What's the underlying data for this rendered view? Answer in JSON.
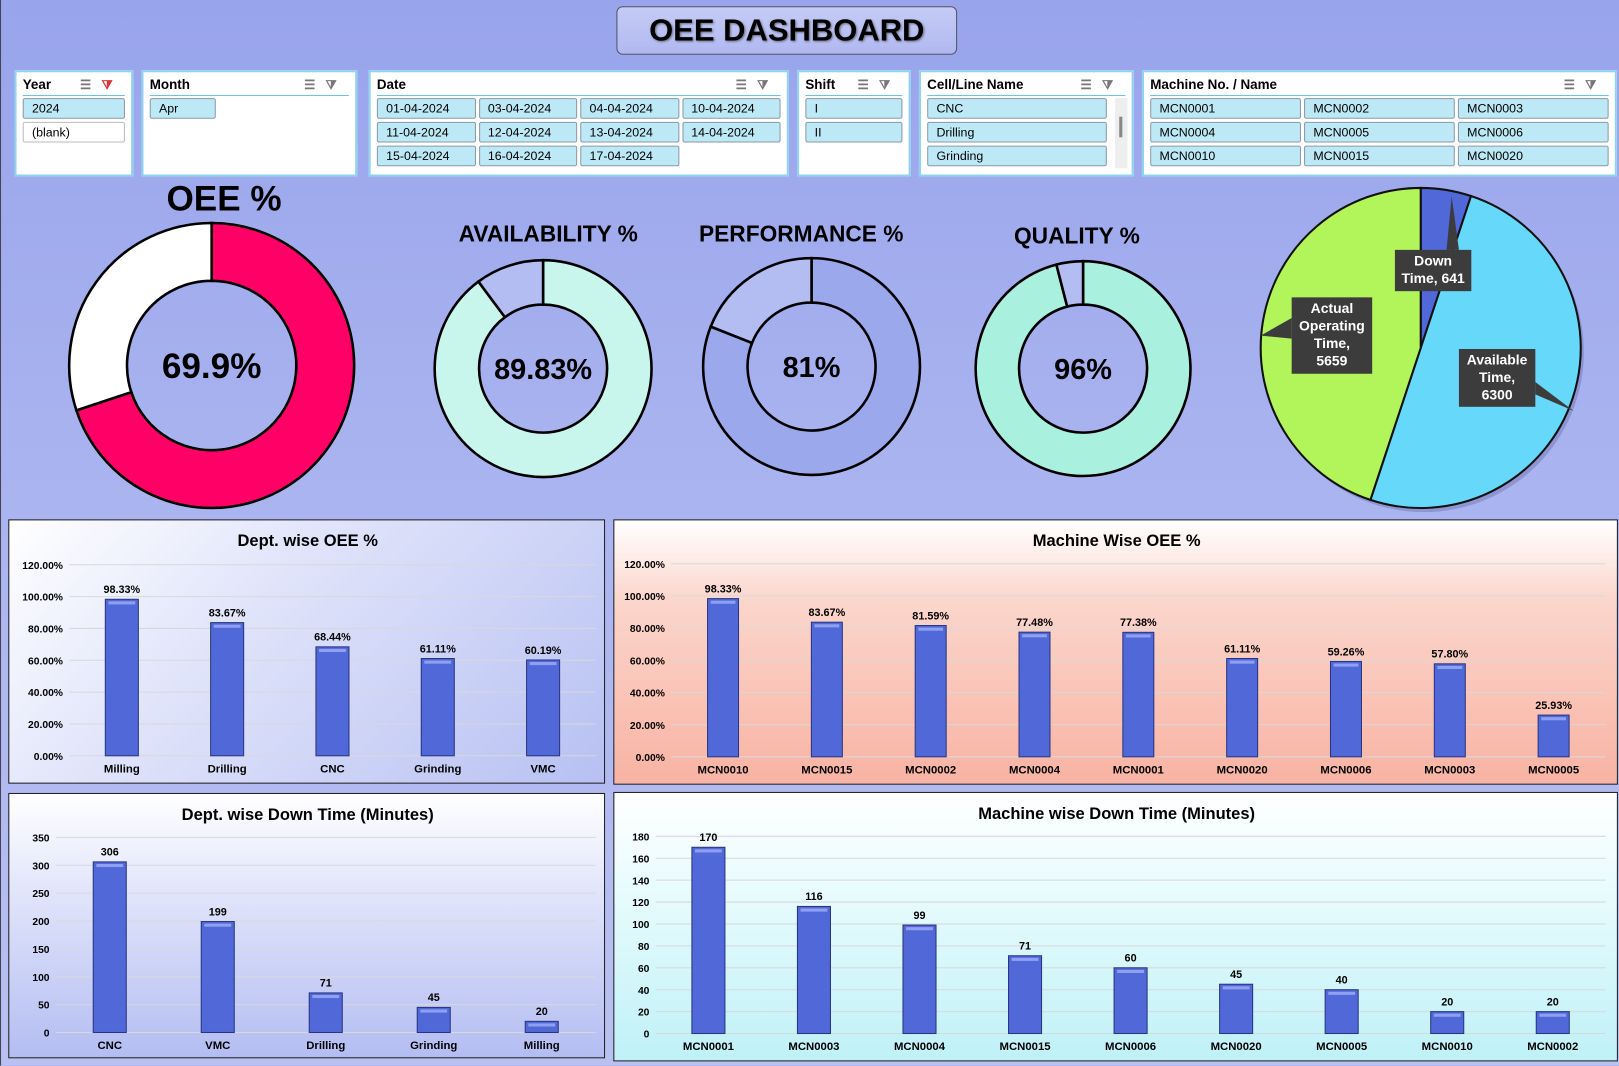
{
  "title": "OEE DASHBOARD",
  "slicers": [
    {
      "name": "Year",
      "filter_active": true,
      "columns": 1,
      "items": [
        {
          "label": "2024",
          "selected": true
        },
        {
          "label": "(blank)",
          "selected": false
        }
      ]
    },
    {
      "name": "Month",
      "filter_active": false,
      "columns": 3,
      "items": [
        {
          "label": "Apr",
          "selected": true
        }
      ]
    },
    {
      "name": "Date",
      "filter_active": false,
      "columns": 4,
      "items": [
        {
          "label": "01-04-2024",
          "selected": true
        },
        {
          "label": "03-04-2024",
          "selected": true
        },
        {
          "label": "04-04-2024",
          "selected": true
        },
        {
          "label": "10-04-2024",
          "selected": true
        },
        {
          "label": "11-04-2024",
          "selected": true
        },
        {
          "label": "12-04-2024",
          "selected": true
        },
        {
          "label": "13-04-2024",
          "selected": true
        },
        {
          "label": "14-04-2024",
          "selected": true
        },
        {
          "label": "15-04-2024",
          "selected": true
        },
        {
          "label": "16-04-2024",
          "selected": true
        },
        {
          "label": "17-04-2024",
          "selected": true
        }
      ]
    },
    {
      "name": "Shift",
      "filter_active": false,
      "columns": 1,
      "items": [
        {
          "label": "I",
          "selected": true
        },
        {
          "label": "II",
          "selected": true
        }
      ]
    },
    {
      "name": "Cell/Line Name",
      "filter_active": false,
      "columns": 1,
      "scrollable": true,
      "items": [
        {
          "label": "CNC",
          "selected": true
        },
        {
          "label": "Drilling",
          "selected": true
        },
        {
          "label": "Grinding",
          "selected": true
        }
      ]
    },
    {
      "name": "Machine No. / Name",
      "filter_active": false,
      "columns": 3,
      "items": [
        {
          "label": "MCN0001",
          "selected": true
        },
        {
          "label": "MCN0002",
          "selected": true
        },
        {
          "label": "MCN0003",
          "selected": true
        },
        {
          "label": "MCN0004",
          "selected": true
        },
        {
          "label": "MCN0005",
          "selected": true
        },
        {
          "label": "MCN0006",
          "selected": true
        },
        {
          "label": "MCN0010",
          "selected": true
        },
        {
          "label": "MCN0015",
          "selected": true
        },
        {
          "label": "MCN0020",
          "selected": true
        }
      ]
    }
  ],
  "kpis": [
    {
      "title": "OEE %",
      "value_label": "69.9%",
      "value": 69.9,
      "fill_color": "#ff0066",
      "rest_color": "#ffffff"
    },
    {
      "title": "AVAILABILITY %",
      "value_label": "89.83%",
      "value": 89.83,
      "fill_color": "#c8f6ec",
      "rest_color": "#b4bdf2"
    },
    {
      "title": "PERFORMANCE %",
      "value_label": "81%",
      "value": 81,
      "fill_color": "#9ba8ec",
      "rest_color": "#b4bdf2"
    },
    {
      "title": "QUALITY %",
      "value_label": "96%",
      "value": 96,
      "fill_color": "#aaf0de",
      "rest_color": "#b4bdf2"
    }
  ],
  "chart_data": [
    {
      "type": "pie",
      "title": "",
      "slices": [
        {
          "name": "Down Time",
          "value": 641,
          "label": "Down Time, 641",
          "color": "#5068d8"
        },
        {
          "name": "Available Time",
          "value": 6300,
          "label": "Available Time, 6300",
          "color": "#66d8fa"
        },
        {
          "name": "Actual Operating Time",
          "value": 5659,
          "label": "Actual Operating Time, 5659",
          "color": "#b2f55a"
        }
      ]
    },
    {
      "type": "bar",
      "title": "Dept. wise OEE %",
      "categories": [
        "Milling",
        "Drilling",
        "CNC",
        "Grinding",
        "VMC"
      ],
      "values": [
        98.33,
        83.67,
        68.44,
        61.11,
        60.19
      ],
      "data_labels": [
        "98.33%",
        "83.67%",
        "68.44%",
        "61.11%",
        "60.19%"
      ],
      "ylim": [
        0,
        120
      ],
      "yticks": [
        "0.00%",
        "20.00%",
        "40.00%",
        "60.00%",
        "80.00%",
        "100.00%",
        "120.00%"
      ],
      "grid": true,
      "bar_color": "#5068d8"
    },
    {
      "type": "bar",
      "title": "Machine Wise OEE %",
      "categories": [
        "MCN0010",
        "MCN0015",
        "MCN0002",
        "MCN0004",
        "MCN0001",
        "MCN0020",
        "MCN0006",
        "MCN0003",
        "MCN0005"
      ],
      "values": [
        98.33,
        83.67,
        81.59,
        77.48,
        77.38,
        61.11,
        59.26,
        57.8,
        25.93
      ],
      "data_labels": [
        "98.33%",
        "83.67%",
        "81.59%",
        "77.48%",
        "77.38%",
        "61.11%",
        "59.26%",
        "57.80%",
        "25.93%"
      ],
      "ylim": [
        0,
        120
      ],
      "yticks": [
        "0.00%",
        "20.00%",
        "40.00%",
        "60.00%",
        "80.00%",
        "100.00%",
        "120.00%"
      ],
      "grid": true,
      "bar_color": "#5068d8"
    },
    {
      "type": "bar",
      "title": "Dept. wise Down Time (Minutes)",
      "categories": [
        "CNC",
        "VMC",
        "Drilling",
        "Grinding",
        "Milling"
      ],
      "values": [
        306,
        199,
        71,
        45,
        20
      ],
      "data_labels": [
        "306",
        "199",
        "71",
        "45",
        "20"
      ],
      "ylim": [
        0,
        350
      ],
      "yticks": [
        "0",
        "50",
        "100",
        "150",
        "200",
        "250",
        "300",
        "350"
      ],
      "grid": true,
      "bar_color": "#5068d8"
    },
    {
      "type": "bar",
      "title": "Machine wise Down Time (Minutes)",
      "categories": [
        "MCN0001",
        "MCN0003",
        "MCN0004",
        "MCN0015",
        "MCN0006",
        "MCN0020",
        "MCN0005",
        "MCN0010",
        "MCN0002"
      ],
      "values": [
        170,
        116,
        99,
        71,
        60,
        45,
        40,
        20,
        20
      ],
      "data_labels": [
        "170",
        "116",
        "99",
        "71",
        "60",
        "45",
        "40",
        "20",
        "20"
      ],
      "ylim": [
        0,
        180
      ],
      "yticks": [
        "0",
        "20",
        "40",
        "60",
        "80",
        "100",
        "120",
        "140",
        "160",
        "180"
      ],
      "grid": true,
      "bar_color": "#5068d8"
    }
  ]
}
